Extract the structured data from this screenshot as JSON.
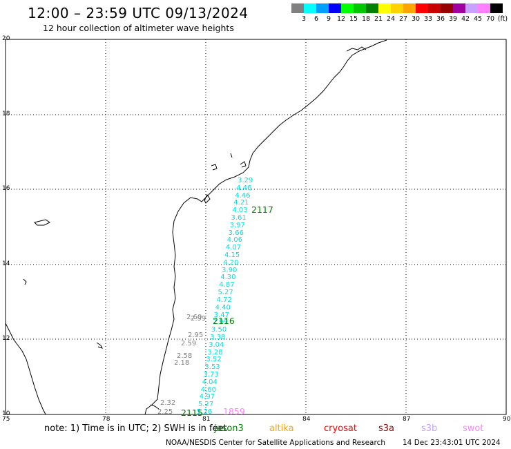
{
  "title": "12:00 – 23:59 UTC 09/13/2024",
  "subtitle": "12 hour collection of altimeter wave heights",
  "colorbar": {
    "colors": [
      "#808080",
      "#00ffff",
      "#00a0ff",
      "#0000ff",
      "#00ff00",
      "#00c800",
      "#008000",
      "#ffff00",
      "#ffd200",
      "#ffa500",
      "#ff0000",
      "#c80000",
      "#960000",
      "#a000a0",
      "#c8a0ff",
      "#ff80ff",
      "#000000"
    ],
    "labels": [
      "3",
      "6",
      "9",
      "12",
      "15",
      "18",
      "21",
      "24",
      "27",
      "30",
      "33",
      "36",
      "39",
      "42",
      "45",
      "70",
      "(ft)"
    ]
  },
  "lat_labels": [
    "20",
    "18",
    "16",
    "14",
    "12",
    "10"
  ],
  "lon_labels": [
    "75",
    "78",
    "81",
    "84",
    "87",
    "90"
  ],
  "note": "note:  1) Time is in UTC;  2) SWH is in feet",
  "satellites": [
    {
      "name": "jason3",
      "color": "#008000"
    },
    {
      "name": "altika",
      "color": "#ffa500"
    },
    {
      "name": "cryosat",
      "color": "#ff0000"
    },
    {
      "name": "s3a",
      "color": "#960000"
    },
    {
      "name": "s3b",
      "color": "#c8a0ff"
    },
    {
      "name": "swot",
      "color": "#ff80ff"
    }
  ],
  "credit": "NOAA/NESDIS Center for Satellite Applications and Research",
  "stamp": "14 Dec 23:43:01 UTC 2024",
  "passes": [
    {
      "label": "2117",
      "color": "#008000"
    },
    {
      "label": "2116",
      "color": "#008000"
    },
    {
      "label": "2115",
      "color": "#008000"
    },
    {
      "label": "1859",
      "color": "#ff80ff"
    }
  ],
  "track_cyan": [
    "3.29",
    "4.46",
    "4.46",
    "4.21",
    "4.03",
    "3.61",
    "3.97",
    "3.66",
    "4.06",
    "4.07",
    "4.15",
    "4.20",
    "3.90",
    "4.30",
    "4.87",
    "5.27",
    "4.72",
    "4.40",
    "3.47",
    "2.99",
    "3.50",
    "3.38",
    "3.04",
    "3.28",
    "3.52",
    "3.53",
    "3.73",
    "4.04",
    "4.60",
    "4.97",
    "5.27",
    "5.26"
  ],
  "track_gray": [
    "2.60",
    "2.99",
    "2.95",
    "2.59",
    "2.58",
    "2.18",
    "2.32",
    "2.25"
  ]
}
